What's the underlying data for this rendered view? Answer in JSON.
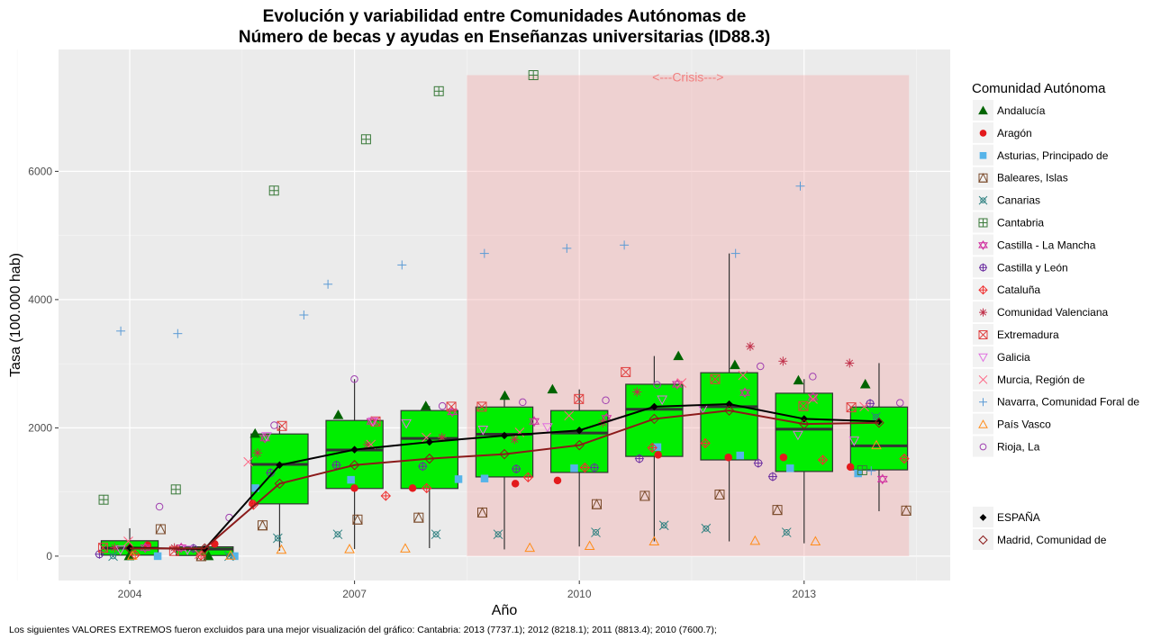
{
  "chart_data": {
    "type": "box",
    "title": [
      "Evolución y variabilidad entre Comunidades Autónomas de",
      "Número de becas y ayudas en Enseñanzas universitarias (ID88.3)"
    ],
    "xlabel": "Año",
    "ylabel": "Tasa (100.000 hab)",
    "xlim": [
      2003.05,
      2014.95
    ],
    "ylim": [
      -380,
      7900
    ],
    "x_ticks": [
      2004,
      2007,
      2010,
      2013
    ],
    "x_tick_labels": [
      "2004",
      "2007",
      "2010",
      "2013"
    ],
    "y_ticks": [
      0,
      2000,
      4000,
      6000
    ],
    "y_tick_labels": [
      "0",
      "2000",
      "4000",
      "6000"
    ],
    "grid": true,
    "annotation": {
      "text": "<---Crisis--->",
      "x_range": [
        2008.5,
        2014.4
      ],
      "y_top": 7500,
      "color": "#f4a0a0"
    },
    "years": [
      2004,
      2005,
      2006,
      2007,
      2008,
      2009,
      2010,
      2011,
      2012,
      2013,
      2014
    ],
    "boxes": [
      {
        "year": 2004,
        "low": 0,
        "q1": 15,
        "median": 125,
        "q3": 240,
        "high": 435
      },
      {
        "year": 2005,
        "low": 0,
        "q1": 10,
        "median": 110,
        "q3": 145,
        "high": 160
      },
      {
        "year": 2006,
        "low": 85,
        "q1": 815,
        "median": 1430,
        "q3": 1905,
        "high": 2035
      },
      {
        "year": 2007,
        "low": 110,
        "q1": 1055,
        "median": 1655,
        "q3": 2115,
        "high": 2760
      },
      {
        "year": 2008,
        "low": 125,
        "q1": 1055,
        "median": 1835,
        "q3": 2270,
        "high": 2340
      },
      {
        "year": 2009,
        "low": 105,
        "q1": 1235,
        "median": 1900,
        "q3": 2325,
        "high": 2500
      },
      {
        "year": 2010,
        "low": 150,
        "q1": 1305,
        "median": 1920,
        "q3": 2270,
        "high": 2600
      },
      {
        "year": 2011,
        "low": 230,
        "q1": 1555,
        "median": 2290,
        "q3": 2680,
        "high": 3120
      },
      {
        "year": 2012,
        "low": 230,
        "q1": 1500,
        "median": 2330,
        "q3": 2860,
        "high": 4720
      },
      {
        "year": 2013,
        "low": 200,
        "q1": 1320,
        "median": 1980,
        "q3": 2540,
        "high": 2760
      },
      {
        "year": 2014,
        "low": 700,
        "q1": 1345,
        "median": 1720,
        "q3": 2325,
        "high": 3010
      }
    ],
    "box_color": "#00ee00",
    "lines": [
      {
        "name": "ESPAÑA",
        "color": "#000000",
        "shape": "dfill",
        "values": [
          130,
          110,
          1420,
          1660,
          1780,
          1880,
          1960,
          2330,
          2370,
          2140,
          2100
        ]
      },
      {
        "name": "Madrid, Comunidad de",
        "color": "#8b1a1a",
        "shape": "diamond",
        "values": [
          120,
          120,
          1130,
          1420,
          1520,
          1590,
          1730,
          2140,
          2270,
          2060,
          2080
        ]
      }
    ],
    "legend_title": "Comunidad Autónoma",
    "legend_position": "right",
    "series": [
      {
        "name": "Andalucía",
        "color": "#006400",
        "shape": "tri",
        "values": [
          0,
          0,
          1910,
          2200,
          2340,
          2500,
          2600,
          3120,
          2980,
          2740,
          2680
        ]
      },
      {
        "name": "Aragón",
        "color": "#e31a1c",
        "shape": "dot",
        "values": [
          170,
          190,
          820,
          1060,
          1060,
          1130,
          1180,
          1580,
          1540,
          1540,
          1390
        ]
      },
      {
        "name": "Asturias, Principado de",
        "color": "#56b4e9",
        "shape": "square",
        "values": [
          0,
          0,
          1060,
          1190,
          1200,
          1210,
          1370,
          1700,
          1570,
          1370,
          1290
        ]
      },
      {
        "name": "Baleares, Islas",
        "color": "#7a4a2a",
        "shape": "boxtri",
        "values": [
          420,
          0,
          480,
          570,
          600,
          680,
          810,
          940,
          960,
          720,
          710
        ]
      },
      {
        "name": "Canarias",
        "color": "#2f8080",
        "shape": "boxx",
        "values": [
          0,
          0,
          280,
          340,
          340,
          340,
          370,
          480,
          430,
          370,
          2170
        ]
      },
      {
        "name": "Cantabria",
        "color": "#3a7a3a",
        "shape": "boxplus",
        "values": [
          880,
          1040,
          5700,
          6500,
          7250,
          7500,
          null,
          null,
          null,
          null,
          1340
        ]
      },
      {
        "name": "Castilla - La Mancha",
        "color": "#d02f9f",
        "shape": "star6",
        "values": [
          130,
          130,
          1840,
          2100,
          2250,
          2100,
          2150,
          2680,
          2550,
          2480,
          1200
        ]
      },
      {
        "name": "Castilla y León",
        "color": "#6a2ca0",
        "shape": "circplus",
        "values": [
          30,
          120,
          1300,
          1420,
          1400,
          1360,
          1380,
          1520,
          1450,
          1240,
          2380
        ]
      },
      {
        "name": "Cataluña",
        "color": "#f03030",
        "shape": "diamplus",
        "values": [
          20,
          10,
          800,
          940,
          1060,
          1230,
          1380,
          1690,
          1760,
          1500,
          1520
        ]
      },
      {
        "name": "Comunidad Valenciana",
        "color": "#c0304a",
        "shape": "asterisk",
        "values": [
          130,
          130,
          1610,
          1740,
          1850,
          1820,
          2080,
          2560,
          3270,
          3040,
          3010
        ]
      },
      {
        "name": "Extremadura",
        "color": "#e04040",
        "shape": "boxx2",
        "values": [
          130,
          80,
          2030,
          2100,
          2330,
          2330,
          2450,
          2870,
          2760,
          2340,
          2320
        ]
      },
      {
        "name": "Galicia",
        "color": "#e070e0",
        "shape": "tridown",
        "values": [
          100,
          100,
          1870,
          2100,
          2070,
          1970,
          2010,
          2440,
          2300,
          1890,
          1800
        ]
      },
      {
        "name": "Murcia, Región de",
        "color": "#ff6080",
        "shape": "x",
        "values": [
          230,
          30,
          1470,
          1740,
          1850,
          1930,
          2190,
          2700,
          2820,
          2450,
          2330
        ]
      },
      {
        "name": "Navarra, Comunidad Foral de",
        "color": "#5b9bd5",
        "shape": "plus",
        "values": [
          3510,
          3470,
          3760,
          4240,
          4540,
          4720,
          4800,
          4850,
          4720,
          5770,
          1330
        ]
      },
      {
        "name": "País Vasco",
        "color": "#ff8c1a",
        "shape": "triopen",
        "values": [
          10,
          10,
          100,
          110,
          120,
          130,
          160,
          230,
          240,
          230,
          1730
        ]
      },
      {
        "name": "Rioja, La",
        "color": "#a040b0",
        "shape": "circle",
        "values": [
          770,
          600,
          2040,
          2760,
          2340,
          2400,
          2430,
          2670,
          2960,
          2800,
          2390
        ]
      }
    ],
    "footnote": "Los siguientes VALORES EXTREMOS fueron excluidos para una mejor visualización del gráfico: Cantabria: 2013 (7737.1); 2012 (8218.1); 2011 (8813.4); 2010 (7600.7);"
  }
}
